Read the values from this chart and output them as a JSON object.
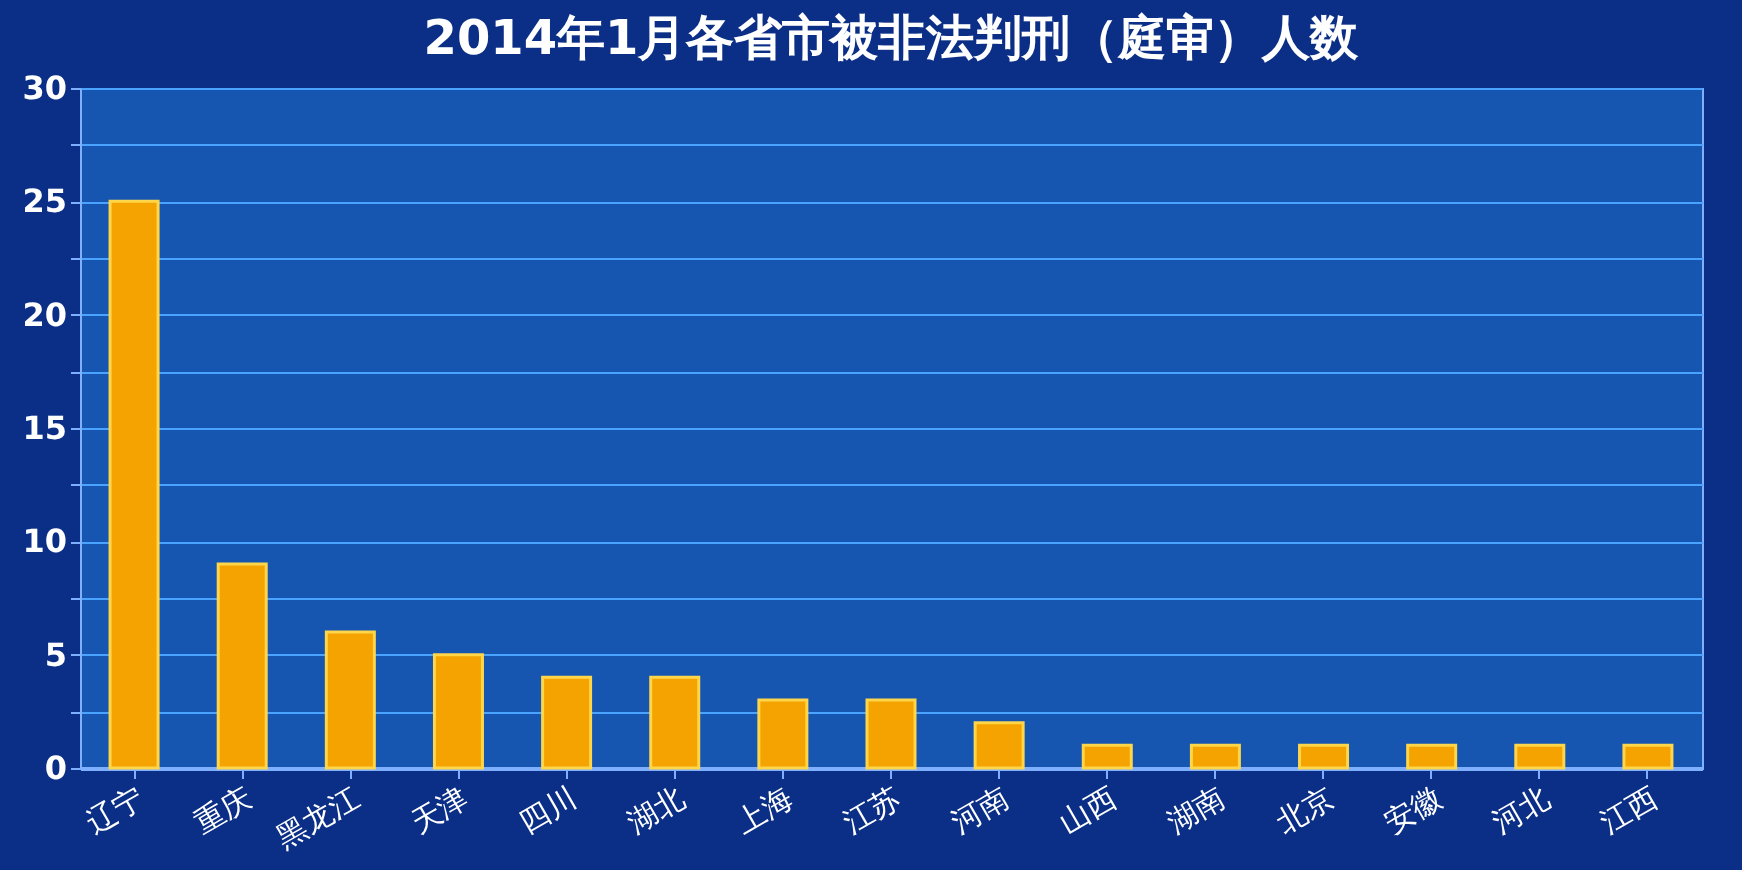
{
  "chart_data": {
    "type": "bar",
    "title": "2014年1月各省市被非法判刑（庭审）人数",
    "categories": [
      "辽宁",
      "重庆",
      "黑龙江",
      "天津",
      "四川",
      "湖北",
      "上海",
      "江苏",
      "河南",
      "山西",
      "湖南",
      "北京",
      "安徽",
      "河北",
      "江西"
    ],
    "values": [
      25,
      9,
      6,
      5,
      4,
      4,
      3,
      3,
      2,
      1,
      1,
      1,
      1,
      1,
      1
    ],
    "color": "#f5a300",
    "ylim": [
      0,
      30
    ],
    "yticks": [
      0,
      {
        "value": 2.5,
        "label": null
      },
      5,
      {
        "value": 7.5,
        "label": null
      },
      10,
      {
        "value": 12.5,
        "label": null
      },
      15,
      {
        "value": 17.5,
        "label": null
      },
      20,
      {
        "value": 22.5,
        "label": null
      },
      25,
      {
        "value": 27.5,
        "label": null
      },
      30
    ],
    "grid": "y"
  }
}
